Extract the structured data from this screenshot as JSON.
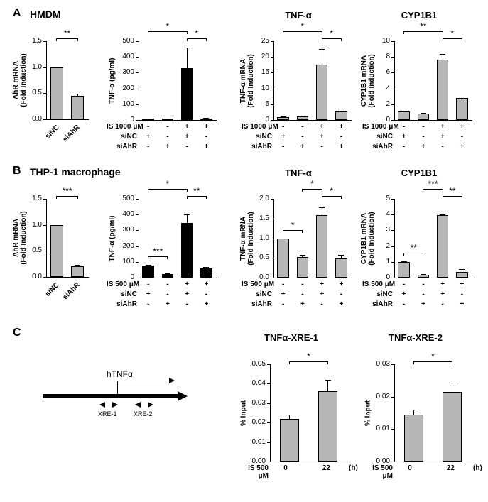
{
  "panels": {
    "A": {
      "letter": "A",
      "sublabel": "HMDM"
    },
    "B": {
      "letter": "B",
      "sublabel": "THP-1 macrophage"
    },
    "C": {
      "letter": "C"
    }
  },
  "colors": {
    "gray_bar": "#b7b7b7",
    "black_bar": "#000000",
    "axis": "#000000",
    "bg": "#ffffff"
  },
  "charts": {
    "A1": {
      "type": "bar",
      "title": "",
      "ylabel": "AhR mRNA\n(Fold Induction)",
      "ylim": [
        0,
        1.5
      ],
      "yticks": [
        0.0,
        0.5,
        1.0,
        1.5
      ],
      "categories": [
        "siNC",
        "siAhR"
      ],
      "values": [
        1.0,
        0.45
      ],
      "errs": [
        0.0,
        0.04
      ],
      "bar_color": "#b7b7b7",
      "bar_width": 0.6,
      "sig": [
        {
          "from": 0,
          "to": 1,
          "txt": "**"
        }
      ],
      "xrot": true
    },
    "A2": {
      "type": "bar",
      "title": "",
      "ylabel": "TNF-α (pg/ml)",
      "ylim": [
        0,
        500
      ],
      "yticks": [
        0,
        100,
        200,
        300,
        400,
        500
      ],
      "values": [
        8,
        5,
        330,
        10
      ],
      "errs": [
        3,
        2,
        130,
        5
      ],
      "bar_color": "#000000",
      "bar_width": 0.6,
      "sig": [
        {
          "from": 0,
          "to": 2,
          "txt": "*"
        },
        {
          "from": 2,
          "to": 3,
          "txt": "*"
        }
      ],
      "conds": {
        "IS 1000 μM": [
          "-",
          "-",
          "+",
          "+"
        ],
        "siNC": [
          "+",
          "-",
          "+",
          "-"
        ],
        "siAhR": [
          "-",
          "+",
          "-",
          "+"
        ]
      }
    },
    "A3": {
      "type": "bar",
      "title": "TNF-α",
      "ylabel": "TNF-α mRNA\n(Fold Induction)",
      "ylim": [
        0,
        25
      ],
      "yticks": [
        0,
        5,
        10,
        15,
        20,
        25
      ],
      "values": [
        1.0,
        1.2,
        17.5,
        2.7
      ],
      "errs": [
        0.1,
        0.2,
        5.0,
        0.3
      ],
      "bar_color": "#b7b7b7",
      "bar_width": 0.6,
      "sig": [
        {
          "from": 0,
          "to": 2,
          "txt": "*"
        },
        {
          "from": 2,
          "to": 3,
          "txt": "*"
        }
      ],
      "conds": {
        "IS 1000 μM": [
          "-",
          "-",
          "+",
          "+"
        ],
        "siNC": [
          "+",
          "-",
          "+",
          "-"
        ],
        "siAhR": [
          "-",
          "+",
          "-",
          "+"
        ]
      }
    },
    "A4": {
      "type": "bar",
      "title": "CYP1B1",
      "ylabel": "CYP1B1 mRNA\n(Fold Induction)",
      "ylim": [
        0,
        10
      ],
      "yticks": [
        0,
        2,
        4,
        6,
        8,
        10
      ],
      "values": [
        1.05,
        0.8,
        7.7,
        2.8
      ],
      "errs": [
        0.1,
        0.1,
        0.7,
        0.2
      ],
      "bar_color": "#b7b7b7",
      "bar_width": 0.6,
      "sig": [
        {
          "from": 0,
          "to": 2,
          "txt": "**"
        },
        {
          "from": 2,
          "to": 3,
          "txt": "*"
        }
      ],
      "conds": {
        "IS 1000 μM": [
          "-",
          "-",
          "+",
          "+"
        ],
        "siNC": [
          "+",
          "-",
          "+",
          "-"
        ],
        "siAhR": [
          "-",
          "+",
          "-",
          "+"
        ]
      }
    },
    "B1": {
      "type": "bar",
      "title": "",
      "ylabel": "AhR mRNA\n(Fold Induction)",
      "ylim": [
        0,
        1.5
      ],
      "yticks": [
        0.0,
        0.5,
        1.0,
        1.5
      ],
      "categories": [
        "siNC",
        "siAhR"
      ],
      "values": [
        1.0,
        0.2
      ],
      "errs": [
        0.0,
        0.03
      ],
      "bar_color": "#b7b7b7",
      "bar_width": 0.6,
      "sig": [
        {
          "from": 0,
          "to": 1,
          "txt": "***"
        }
      ],
      "xrot": true
    },
    "B2": {
      "type": "bar",
      "title": "",
      "ylabel": "TNF-α (pg/ml)",
      "ylim": [
        0,
        500
      ],
      "yticks": [
        0,
        100,
        200,
        300,
        400,
        500
      ],
      "values": [
        75,
        22,
        345,
        58
      ],
      "errs": [
        8,
        4,
        55,
        10
      ],
      "bar_color": "#000000",
      "bar_width": 0.6,
      "sig": [
        {
          "from": 0,
          "to": 1,
          "txt": "***",
          "low": true
        },
        {
          "from": 0,
          "to": 2,
          "txt": "*"
        },
        {
          "from": 2,
          "to": 3,
          "txt": "**"
        }
      ],
      "conds": {
        "IS 500 μM": [
          "-",
          "-",
          "+",
          "+"
        ],
        "siNC": [
          "+",
          "-",
          "+",
          "-"
        ],
        "siAhR": [
          "-",
          "+",
          "-",
          "+"
        ]
      }
    },
    "B3": {
      "type": "bar",
      "title": "TNF-α",
      "ylabel": "TNF-α mRNA\n(Fold Induction)",
      "ylim": [
        0,
        2.0
      ],
      "yticks": [
        0.0,
        0.5,
        1.0,
        1.5,
        2.0
      ],
      "values": [
        1.0,
        0.53,
        1.58,
        0.49
      ],
      "errs": [
        0.0,
        0.05,
        0.2,
        0.08
      ],
      "bar_color": "#b7b7b7",
      "bar_width": 0.6,
      "sig": [
        {
          "from": 0,
          "to": 1,
          "txt": "*",
          "low": true
        },
        {
          "from": 1,
          "to": 2,
          "txt": "*"
        },
        {
          "from": 2,
          "to": 3,
          "txt": "*"
        }
      ],
      "conds": {
        "IS 500 μM": [
          "-",
          "-",
          "+",
          "+"
        ],
        "siNC": [
          "+",
          "-",
          "+",
          "-"
        ],
        "siAhR": [
          "-",
          "+",
          "-",
          "+"
        ]
      }
    },
    "B4": {
      "type": "bar",
      "title": "CYP1B1",
      "ylabel": "CYP1B1 mRNA\n(Fold Induction)",
      "ylim": [
        0,
        5
      ],
      "yticks": [
        0,
        1,
        2,
        3,
        4,
        5
      ],
      "values": [
        1.0,
        0.18,
        3.95,
        0.37
      ],
      "errs": [
        0.05,
        0.04,
        0.07,
        0.15
      ],
      "bar_color": "#b7b7b7",
      "bar_width": 0.6,
      "sig": [
        {
          "from": 0,
          "to": 1,
          "txt": "**",
          "low": true
        },
        {
          "from": 1,
          "to": 2,
          "txt": "***"
        },
        {
          "from": 2,
          "to": 3,
          "txt": "**"
        }
      ],
      "conds": {
        "IS 500 μM": [
          "-",
          "-",
          "+",
          "+"
        ],
        "siNC": [
          "+",
          "-",
          "+",
          "-"
        ],
        "siAhR": [
          "-",
          "+",
          "-",
          "+"
        ]
      }
    },
    "C1": {
      "type": "bar",
      "title": "TNFα-XRE-1",
      "ylabel": "% Input",
      "ylim": [
        0,
        0.05
      ],
      "yticks": [
        0.0,
        0.01,
        0.02,
        0.03,
        0.04,
        0.05
      ],
      "categories": [
        "0",
        "22"
      ],
      "values": [
        0.022,
        0.036
      ],
      "errs": [
        0.002,
        0.006
      ],
      "bar_color": "#b7b7b7",
      "bar_width": 0.5,
      "sig": [
        {
          "from": 0,
          "to": 1,
          "txt": "*"
        }
      ],
      "xaxis_label": "IS 500 μM",
      "xaxis_suffix": "(h)"
    },
    "C2": {
      "type": "bar",
      "title": "TNFα-XRE-2",
      "ylabel": "% Input",
      "ylim": [
        0,
        0.03
      ],
      "yticks": [
        0.0,
        0.01,
        0.02,
        0.03
      ],
      "categories": [
        "0",
        "22"
      ],
      "values": [
        0.0145,
        0.0215
      ],
      "errs": [
        0.0015,
        0.0035
      ],
      "bar_color": "#b7b7b7",
      "bar_width": 0.5,
      "sig": [
        {
          "from": 0,
          "to": 1,
          "txt": "*"
        }
      ],
      "xaxis_label": "IS 500 μM",
      "xaxis_suffix": "(h)"
    }
  },
  "C_diagram": {
    "label": "hTNFα",
    "xre1": "XRE-1",
    "xre2": "XRE-2"
  },
  "layout": {
    "fontsize_axis": 10,
    "fontsize_title": 13,
    "fontsize_label": 16
  }
}
